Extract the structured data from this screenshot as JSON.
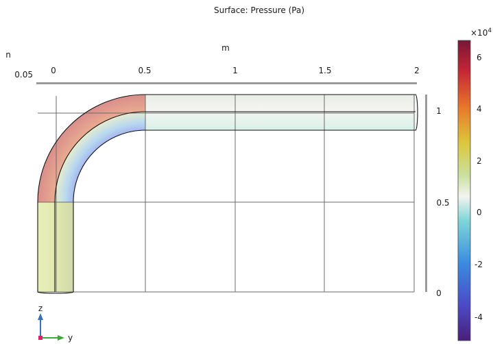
{
  "plot": {
    "title": "Surface: Pressure (Pa)",
    "top_axis_unit": "m",
    "left_axis_unit": "n",
    "left_axis_value": "0.05",
    "top_ticks": [
      "0",
      "0.5",
      "1",
      "1.5",
      "2"
    ],
    "right_ticks": [
      "1",
      "0.5",
      "0"
    ]
  },
  "colorbar": {
    "exponent_label": "×10",
    "exponent_power": "4",
    "ticks": [
      "6",
      "4",
      "2",
      "0",
      "-2",
      "-4"
    ],
    "top_color": "#7a1637",
    "bottom_color": "#4a1e7a"
  },
  "triad": {
    "z_label": "z",
    "y_label": "y",
    "z_color": "#3b6fb6",
    "y_color": "#3aaa3a",
    "origin_color": "#e0206a"
  }
}
